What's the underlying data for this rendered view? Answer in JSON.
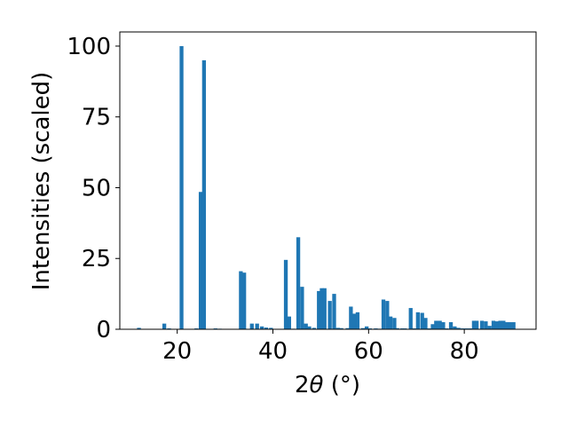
{
  "chart_data": {
    "type": "bar",
    "title": "",
    "xlabel_parts": {
      "pre": "2",
      "theta": "θ",
      "unit": " (°)"
    },
    "ylabel": "Intensities (scaled)",
    "xlim": [
      8,
      95
    ],
    "ylim": [
      0,
      105
    ],
    "bar_color": "#1f77b4",
    "bar_width": 0.8,
    "xticks": [
      20,
      40,
      60,
      80
    ],
    "yticks": [
      0,
      25,
      50,
      75,
      100
    ],
    "x": [
      12.0,
      17.3,
      18.3,
      20.9,
      24.0,
      24.9,
      25.6,
      28.0,
      28.9,
      33.3,
      34.0,
      35.6,
      36.7,
      37.7,
      38.6,
      39.6,
      42.7,
      43.4,
      44.3,
      45.3,
      46.1,
      46.9,
      47.6,
      48.6,
      49.6,
      50.2,
      50.8,
      51.9,
      52.8,
      53.6,
      54.3,
      55.6,
      56.3,
      57.0,
      57.7,
      58.8,
      59.6,
      60.3,
      61.5,
      62.2,
      63.1,
      63.9,
      64.6,
      65.4,
      66.0,
      67.0,
      67.6,
      68.8,
      69.5,
      70.3,
      71.2,
      71.9,
      72.6,
      73.4,
      74.1,
      74.9,
      75.6,
      76.3,
      77.2,
      78.0,
      78.8,
      79.6,
      80.4,
      81.2,
      82.0,
      82.6,
      83.7,
      84.5,
      85.3,
      86.1,
      86.8,
      87.5,
      88.2,
      88.9,
      89.5,
      90.3
    ],
    "values": [
      0.5,
      2.0,
      0.3,
      100.0,
      0.3,
      48.5,
      95.0,
      0.3,
      0.2,
      20.5,
      20.0,
      2.0,
      2.0,
      1.0,
      0.6,
      0.5,
      24.5,
      4.5,
      0.2,
      32.5,
      15.0,
      2.0,
      1.0,
      0.5,
      13.5,
      14.5,
      14.5,
      10.0,
      12.5,
      0.5,
      0.4,
      0.4,
      8.0,
      5.5,
      6.0,
      0.4,
      1.0,
      0.3,
      0.3,
      0.2,
      10.5,
      10.0,
      4.5,
      4.0,
      0.4,
      0.3,
      0.3,
      7.5,
      0.3,
      6.0,
      5.8,
      4.0,
      0.3,
      1.8,
      3.0,
      3.0,
      2.5,
      0.3,
      2.5,
      1.0,
      0.5,
      0.3,
      0.3,
      0.3,
      3.0,
      3.0,
      3.0,
      2.8,
      1.2,
      3.0,
      2.8,
      3.0,
      3.0,
      2.5,
      2.5,
      2.5
    ]
  }
}
